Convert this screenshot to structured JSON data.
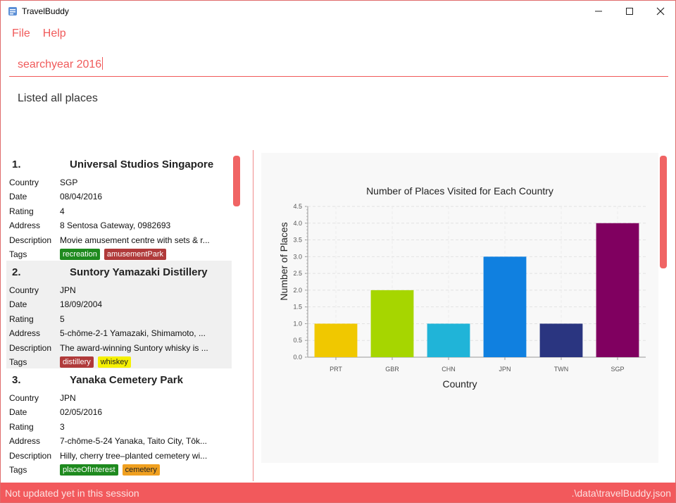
{
  "window": {
    "title": "TravelBuddy"
  },
  "menu": [
    {
      "label": "File"
    },
    {
      "label": "Help"
    }
  ],
  "command": {
    "value": "searchyear 2016"
  },
  "result": {
    "message": "Listed all places"
  },
  "labels": {
    "country": "Country",
    "date": "Date",
    "rating": "Rating",
    "address": "Address",
    "description": "Description",
    "tags": "Tags"
  },
  "places": [
    {
      "index": "1.",
      "name": "Universal Studios Singapore",
      "country": "SGP",
      "date": "08/04/2016",
      "rating": "4",
      "address": "8 Sentosa Gateway, 0982693",
      "description": "Movie amusement centre with sets & r...",
      "tags": [
        {
          "label": "recreation",
          "color": "#1e8a1e",
          "text_color": "#ffffff"
        },
        {
          "label": "amusementPark",
          "color": "#b03a3a",
          "text_color": "#ffffff"
        }
      ]
    },
    {
      "index": "2.",
      "name": "Suntory Yamazaki Distillery",
      "country": "JPN",
      "date": "18/09/2004",
      "rating": "5",
      "address": "5-chōme-2-1 Yamazaki, Shimamoto, ...",
      "description": "The award-winning Suntory whisky is ...",
      "tags": [
        {
          "label": "distillery",
          "color": "#b03a3a",
          "text_color": "#ffffff"
        },
        {
          "label": "whiskey",
          "color": "#f5f000",
          "text_color": "#222222"
        }
      ]
    },
    {
      "index": "3.",
      "name": "Yanaka Cemetery Park",
      "country": "JPN",
      "date": "02/05/2016",
      "rating": "3",
      "address": "7-chōme-5-24 Yanaka, Taito City, Tōk...",
      "description": "Hilly, cherry tree–planted cemetery wi...",
      "tags": [
        {
          "label": "placeOfInterest",
          "color": "#1e8a1e",
          "text_color": "#ffffff"
        },
        {
          "label": "cemetery",
          "color": "#f0a020",
          "text_color": "#222222"
        }
      ]
    }
  ],
  "status": {
    "left": "Not updated yet in this session",
    "right": ".\\data\\travelBuddy.json"
  },
  "colors": {
    "accent": "#f2595c"
  },
  "icons": [
    "app-icon",
    "minimize-icon",
    "maximize-icon",
    "close-icon"
  ],
  "chart_data": {
    "type": "bar",
    "title": "Number of Places Visited for Each Country",
    "xlabel": "Country",
    "ylabel": "Number of Places",
    "categories": [
      "PRT",
      "GBR",
      "CHN",
      "JPN",
      "TWN",
      "SGP"
    ],
    "values": [
      1,
      2,
      1,
      3,
      1,
      4
    ],
    "colors": [
      "#f0c800",
      "#a6d600",
      "#20b4d8",
      "#1080e0",
      "#2a3580",
      "#800060"
    ],
    "ylim": [
      0,
      4.5
    ],
    "yticks": [
      "0.0",
      "0.5",
      "1.0",
      "1.5",
      "2.0",
      "2.5",
      "3.0",
      "3.5",
      "4.0",
      "4.5"
    ],
    "grid": true,
    "legend": "none"
  }
}
